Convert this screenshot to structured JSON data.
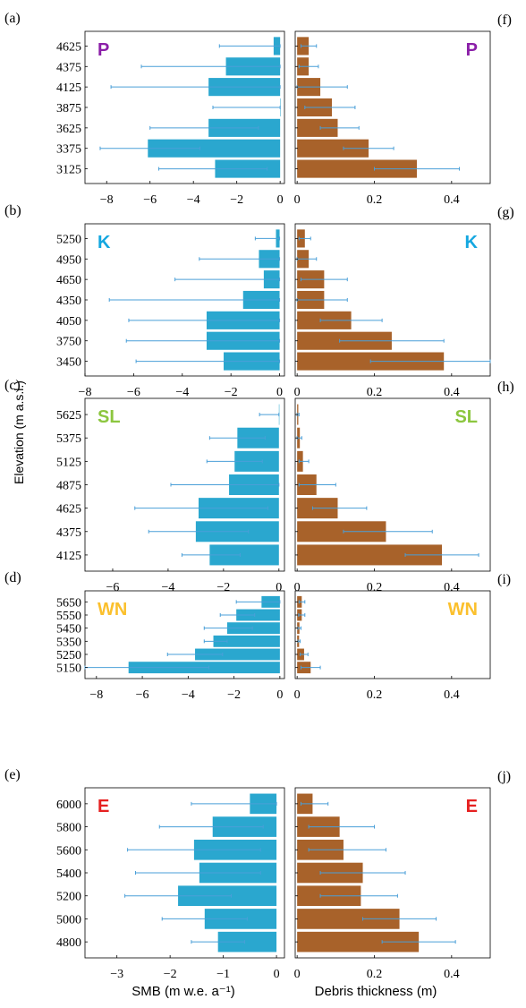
{
  "figure": {
    "ylabel": "Elevation (m a.s.l.)",
    "smb_xlabel": "SMB (m w.e. a⁻¹)",
    "debris_xlabel": "Debris thickness (m)"
  },
  "colors": {
    "smb_bar": "#2aa7cf",
    "debris_bar": "#a8622a",
    "errorbar": "#4a9fd8"
  },
  "chart_data": [
    {
      "type": "bar",
      "orientation": "horizontal",
      "panel_label": "(a)",
      "glacier": "P",
      "glacier_color": "#8b1fa8",
      "categories": [
        "4625",
        "4375",
        "4125",
        "3875",
        "3625",
        "3375",
        "3125"
      ],
      "xlim": [
        -9,
        0
      ],
      "xticks": [
        -8,
        -6,
        -4,
        -2,
        0
      ],
      "series": [
        {
          "values": [
            -0.3,
            -2.5,
            -3.3,
            0,
            -3.3,
            -6.1,
            -3.0
          ]
        }
      ],
      "errors": [
        [
          -2.8,
          0
        ],
        [
          -6.4,
          0
        ],
        [
          -7.8,
          0
        ],
        [
          -3.1,
          0
        ],
        [
          -6.0,
          -1.0
        ],
        [
          -8.3,
          -3.7
        ],
        [
          -5.6,
          -0.6
        ]
      ]
    },
    {
      "type": "bar",
      "orientation": "horizontal",
      "panel_label": "(b)",
      "glacier": "K",
      "glacier_color": "#14a7e0",
      "categories": [
        "5250",
        "4950",
        "4650",
        "4350",
        "4050",
        "3750",
        "3450"
      ],
      "xlim": [
        -8,
        0
      ],
      "xticks": [
        -8,
        -6,
        -4,
        -2,
        0
      ],
      "series": [
        {
          "values": [
            -0.15,
            -0.85,
            -0.65,
            -1.5,
            -3.0,
            -3.0,
            -2.3
          ]
        }
      ],
      "errors": [
        [
          -1.0,
          0
        ],
        [
          -3.3,
          0
        ],
        [
          -4.3,
          0
        ],
        [
          -7.0,
          0
        ],
        [
          -6.2,
          0
        ],
        [
          -6.3,
          0
        ],
        [
          -5.9,
          0
        ]
      ]
    },
    {
      "type": "bar",
      "orientation": "horizontal",
      "panel_label": "(c)",
      "glacier": "SL",
      "glacier_color": "#8cc63f",
      "categories": [
        "5625",
        "5375",
        "5125",
        "4875",
        "4625",
        "4375",
        "4125"
      ],
      "xlim": [
        -7,
        0
      ],
      "xticks": [
        -6,
        -4,
        -2,
        0
      ],
      "series": [
        {
          "values": [
            0,
            -1.5,
            -1.6,
            -1.8,
            -2.9,
            -3.0,
            -2.5
          ]
        }
      ],
      "errors": [
        [
          -0.7,
          0
        ],
        [
          -2.5,
          -0.5
        ],
        [
          -2.6,
          -0.6
        ],
        [
          -3.9,
          0
        ],
        [
          -5.2,
          -0.4
        ],
        [
          -4.7,
          -1.1
        ],
        [
          -3.5,
          -1.4
        ]
      ]
    },
    {
      "type": "bar",
      "orientation": "horizontal",
      "panel_label": "(d)",
      "glacier": "WN",
      "glacier_color": "#fbc02d",
      "categories": [
        "5650",
        "5550",
        "5450",
        "5350",
        "5250",
        "5150"
      ],
      "xlim": [
        -8.5,
        0
      ],
      "xticks": [
        -8,
        -6,
        -4,
        -2,
        0
      ],
      "series": [
        {
          "values": [
            -0.8,
            -1.9,
            -2.3,
            -2.9,
            -3.7,
            -6.6
          ]
        }
      ],
      "errors": [
        [
          -1.9,
          0
        ],
        [
          -2.6,
          -1.1
        ],
        [
          -3.3,
          -1.2
        ],
        [
          -3.3,
          -2.3
        ],
        [
          -4.9,
          -2.5
        ],
        [
          -8.5,
          -3.1
        ]
      ]
    },
    {
      "type": "bar",
      "orientation": "horizontal",
      "panel_label": "(e)",
      "glacier": "E",
      "glacier_color": "#e62020",
      "categories": [
        "6000",
        "5800",
        "5600",
        "5400",
        "5200",
        "5000",
        "4800"
      ],
      "xlim": [
        -3.5,
        0
      ],
      "xticks": [
        -3,
        -2,
        -1,
        0
      ],
      "series": [
        {
          "values": [
            -0.5,
            -1.2,
            -1.55,
            -1.45,
            -1.85,
            -1.35,
            -1.1
          ]
        }
      ],
      "errors": [
        [
          -1.6,
          0
        ],
        [
          -2.2,
          -0.25
        ],
        [
          -2.8,
          -0.3
        ],
        [
          -2.65,
          -0.3
        ],
        [
          -2.85,
          -0.85
        ],
        [
          -2.15,
          -0.55
        ],
        [
          -1.6,
          -0.6
        ]
      ]
    },
    {
      "type": "bar",
      "orientation": "horizontal",
      "panel_label": "(f)",
      "glacier": "P",
      "glacier_color": "#8b1fa8",
      "categories": [
        "4625",
        "4375",
        "4125",
        "3875",
        "3625",
        "3375",
        "3125"
      ],
      "xlim": [
        0,
        0.5
      ],
      "xticks": [
        0,
        0.2,
        0.4
      ],
      "series": [
        {
          "values": [
            0.03,
            0.03,
            0.06,
            0.09,
            0.105,
            0.185,
            0.31
          ]
        }
      ],
      "errors": [
        [
          0.01,
          0.05
        ],
        [
          0.005,
          0.055
        ],
        [
          0,
          0.13
        ],
        [
          0.02,
          0.15
        ],
        [
          0.06,
          0.16
        ],
        [
          0.12,
          0.25
        ],
        [
          0.2,
          0.42
        ]
      ]
    },
    {
      "type": "bar",
      "orientation": "horizontal",
      "panel_label": "(g)",
      "glacier": "K",
      "glacier_color": "#14a7e0",
      "categories": [
        "5250",
        "4950",
        "4650",
        "4350",
        "4050",
        "3750",
        "3450"
      ],
      "xlim": [
        0,
        0.5
      ],
      "xticks": [
        0,
        0.2,
        0.4
      ],
      "series": [
        {
          "values": [
            0.02,
            0.03,
            0.07,
            0.07,
            0.14,
            0.245,
            0.38
          ]
        }
      ],
      "errors": [
        [
          0.005,
          0.035
        ],
        [
          0,
          0.05
        ],
        [
          0.01,
          0.13
        ],
        [
          0,
          0.13
        ],
        [
          0.06,
          0.22
        ],
        [
          0.11,
          0.38
        ],
        [
          0.19,
          0.5
        ]
      ]
    },
    {
      "type": "bar",
      "orientation": "horizontal",
      "panel_label": "(h)",
      "glacier": "SL",
      "glacier_color": "#8cc63f",
      "categories": [
        "5625",
        "5375",
        "5125",
        "4875",
        "4625",
        "4375",
        "4125"
      ],
      "xlim": [
        0,
        0.5
      ],
      "xticks": [
        0,
        0.2,
        0.4
      ],
      "series": [
        {
          "values": [
            0.003,
            0.007,
            0.015,
            0.05,
            0.105,
            0.23,
            0.375
          ]
        }
      ],
      "errors": [
        [
          0,
          0.005
        ],
        [
          0,
          0.012
        ],
        [
          0.005,
          0.03
        ],
        [
          0.005,
          0.1
        ],
        [
          0.04,
          0.18
        ],
        [
          0.12,
          0.35
        ],
        [
          0.28,
          0.47
        ]
      ]
    },
    {
      "type": "bar",
      "orientation": "horizontal",
      "panel_label": "(i)",
      "glacier": "WN",
      "glacier_color": "#fbc02d",
      "categories": [
        "5650",
        "5550",
        "5450",
        "5350",
        "5250",
        "5150"
      ],
      "xlim": [
        0,
        0.5
      ],
      "xticks": [
        0,
        0.2,
        0.4
      ],
      "series": [
        {
          "values": [
            0.012,
            0.012,
            0.006,
            0.005,
            0.018,
            0.035
          ]
        }
      ],
      "errors": [
        [
          0.005,
          0.02
        ],
        [
          0.004,
          0.02
        ],
        [
          0.002,
          0.01
        ],
        [
          0.002,
          0.008
        ],
        [
          0.008,
          0.028
        ],
        [
          0.01,
          0.06
        ]
      ]
    },
    {
      "type": "bar",
      "orientation": "horizontal",
      "panel_label": "(j)",
      "glacier": "E",
      "glacier_color": "#e62020",
      "categories": [
        "6000",
        "5800",
        "5600",
        "5400",
        "5200",
        "5000",
        "4800"
      ],
      "xlim": [
        0,
        0.5
      ],
      "xticks": [
        0,
        0.2,
        0.4
      ],
      "series": [
        {
          "values": [
            0.04,
            0.11,
            0.12,
            0.17,
            0.165,
            0.265,
            0.315
          ]
        }
      ],
      "errors": [
        [
          0.01,
          0.08
        ],
        [
          0.03,
          0.2
        ],
        [
          0.03,
          0.23
        ],
        [
          0.06,
          0.28
        ],
        [
          0.06,
          0.26
        ],
        [
          0.17,
          0.36
        ],
        [
          0.22,
          0.41
        ]
      ]
    }
  ]
}
